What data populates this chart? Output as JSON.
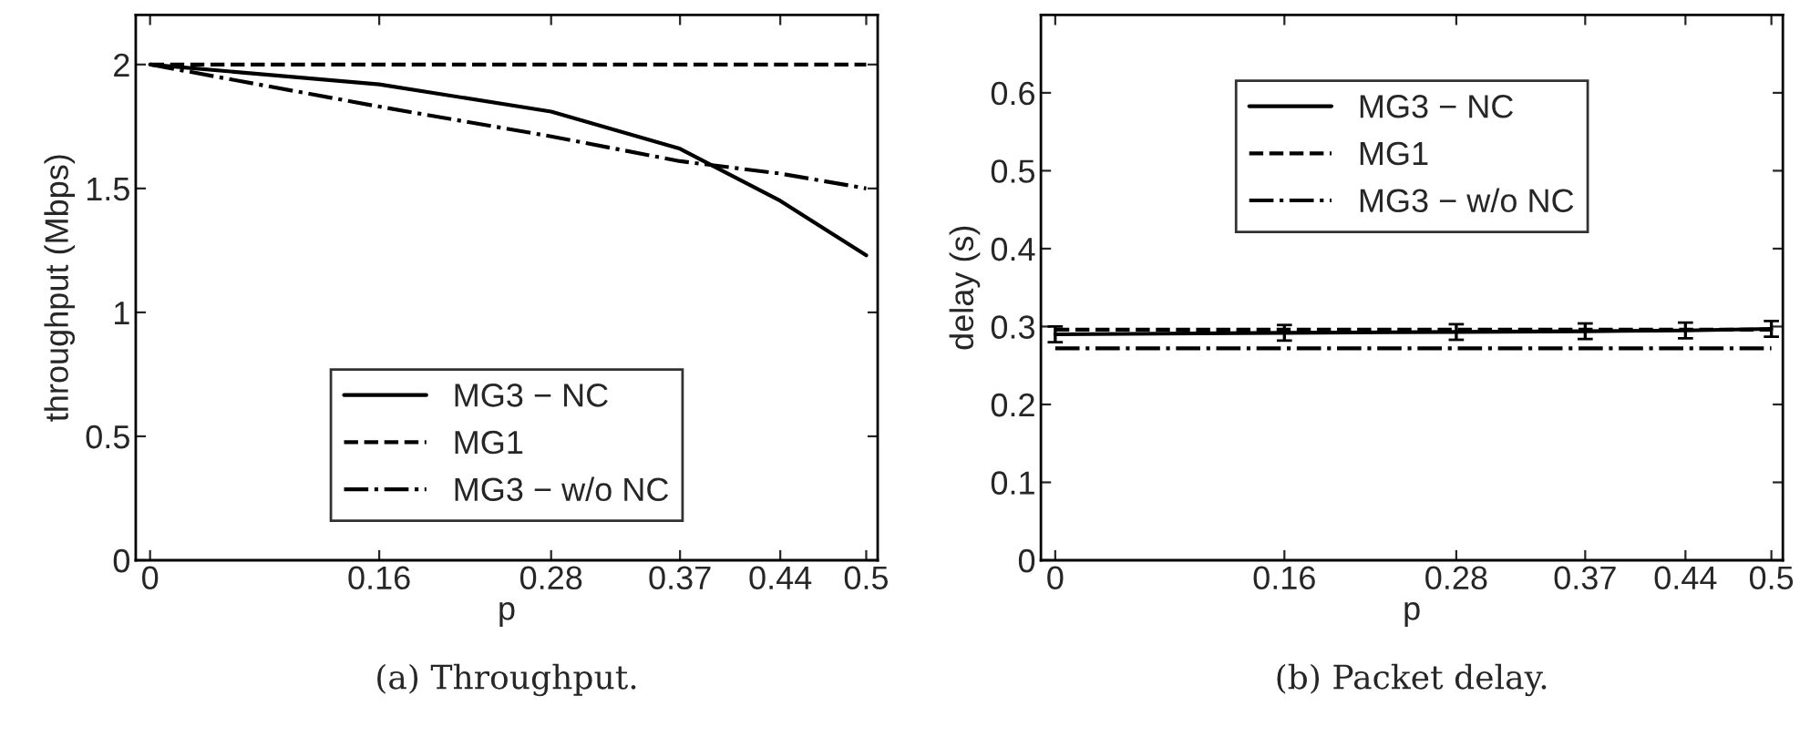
{
  "chart_data": [
    {
      "type": "line",
      "xlabel": "p",
      "ylabel": "throughput (Mbps)",
      "x": [
        0,
        0.16,
        0.28,
        0.37,
        0.44,
        0.5
      ],
      "xlim": [
        -0.01,
        0.508
      ],
      "xticks": [
        0,
        0.16,
        0.28,
        0.37,
        0.44,
        0.5
      ],
      "ylim": [
        0,
        2.2
      ],
      "yticks": [
        0,
        0.5,
        1,
        1.5,
        2
      ],
      "legend": "bottom",
      "grid": false,
      "annotations": [
        "(a) Throughput."
      ],
      "series": [
        {
          "name": "MG3 − NC",
          "color": "#000000",
          "line_style": "solid",
          "values": [
            2,
            1.92,
            1.81,
            1.66,
            1.45,
            1.23
          ]
        },
        {
          "name": "MG1",
          "color": "#000000",
          "line_style": "dashed",
          "values": [
            2,
            2,
            2,
            2,
            2,
            2
          ]
        },
        {
          "name": "MG3 − w/o NC",
          "color": "#000000",
          "line_style": "dashdot",
          "values": [
            2,
            1.83,
            1.71,
            1.61,
            1.56,
            1.5
          ]
        }
      ]
    },
    {
      "type": "line",
      "xlabel": "p",
      "ylabel": "delay (s)",
      "x": [
        0,
        0.16,
        0.28,
        0.37,
        0.44,
        0.5
      ],
      "xlim": [
        -0.01,
        0.508
      ],
      "xticks": [
        0,
        0.16,
        0.28,
        0.37,
        0.44,
        0.5
      ],
      "ylim": [
        0,
        0.7
      ],
      "yticks": [
        0,
        0.1,
        0.2,
        0.3,
        0.4,
        0.5,
        0.6
      ],
      "legend": "top",
      "grid": false,
      "annotations": [
        "(b) Packet delay."
      ],
      "series": [
        {
          "name": "MG3 − NC",
          "color": "#000000",
          "line_style": "solid",
          "values": [
            0.29,
            0.292,
            0.293,
            0.294,
            0.295,
            0.297
          ],
          "errors": [
            0.01,
            0.01,
            0.01,
            0.01,
            0.01,
            0.01
          ]
        },
        {
          "name": "MG1",
          "color": "#000000",
          "line_style": "dashed",
          "values": [
            0.296,
            0.296,
            0.296,
            0.296,
            0.296,
            0.296
          ]
        },
        {
          "name": "MG3 − w/o NC",
          "color": "#000000",
          "line_style": "dashdot",
          "values": [
            0.272,
            0.272,
            0.272,
            0.272,
            0.272,
            0.272
          ]
        }
      ]
    }
  ]
}
